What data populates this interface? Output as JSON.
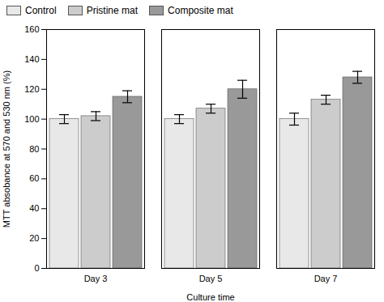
{
  "chart_data": {
    "type": "bar",
    "categories": [
      "Day 3",
      "Day 5",
      "Day 7"
    ],
    "series": [
      {
        "name": "Control",
        "color": "#e8e8e8",
        "values": [
          100,
          100,
          100
        ],
        "errors": [
          3,
          3,
          4
        ]
      },
      {
        "name": "Pristine mat",
        "color": "#cccccc",
        "values": [
          102,
          107,
          113
        ],
        "errors": [
          3,
          3,
          3
        ]
      },
      {
        "name": "Composite mat",
        "color": "#999999",
        "values": [
          115,
          120,
          128
        ],
        "errors": [
          4,
          6,
          4
        ]
      }
    ],
    "xlabel": "Culture time",
    "ylabel": "MTT absobance at 570 and 530 nm (%)",
    "ylim": [
      0,
      160
    ],
    "yticks": [
      0,
      20,
      40,
      60,
      80,
      100,
      120,
      140,
      160
    ],
    "legend": "upper left"
  }
}
